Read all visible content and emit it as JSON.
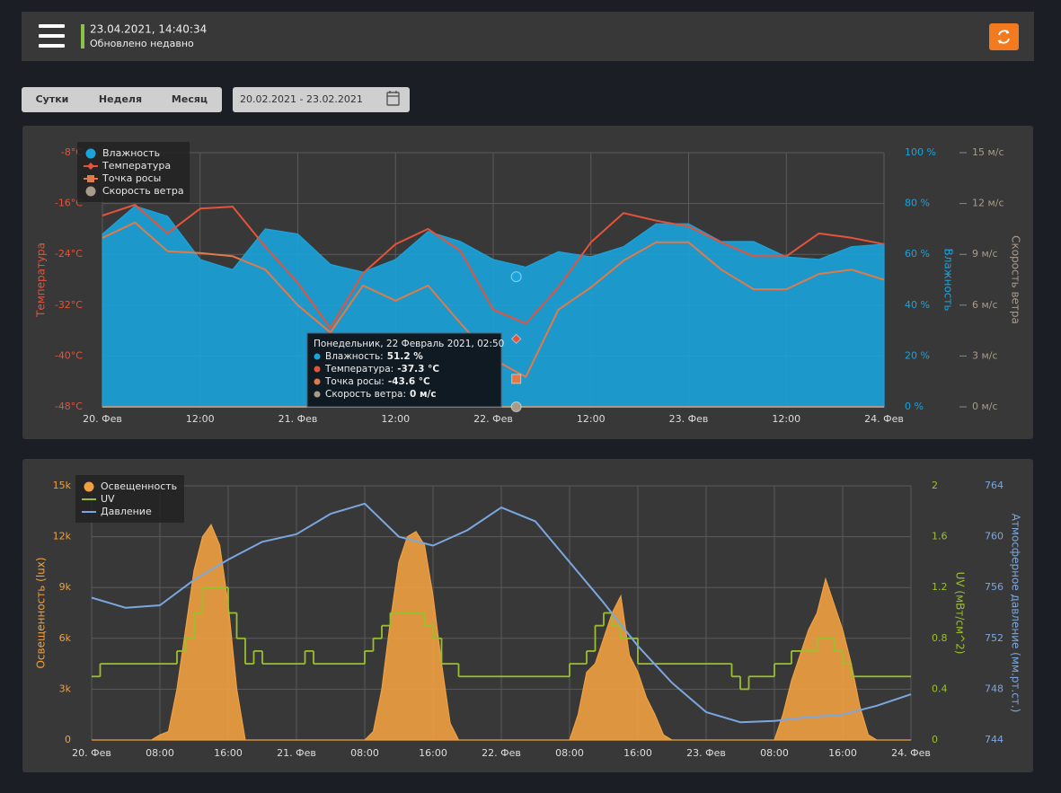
{
  "header": {
    "datetime": "23.04.2021, 14:40:34",
    "status": "Обновлено недавно"
  },
  "controls": {
    "periods": [
      "Сутки",
      "Неделя",
      "Месяц"
    ],
    "date_range": "20.02.2021 - 23.02.2021"
  },
  "chart_data": [
    {
      "type": "line",
      "grid": true,
      "legend": "top-left",
      "x": [
        0,
        4,
        8,
        12,
        16,
        20,
        24,
        28,
        32,
        36,
        40,
        44,
        48,
        52,
        56,
        60,
        64,
        68,
        72,
        76,
        80,
        84,
        88,
        92,
        96
      ],
      "xlim": [
        0,
        96
      ],
      "xticks": [
        {
          "value": 0,
          "label": "20. Фев"
        },
        {
          "value": 12,
          "label": "12:00"
        },
        {
          "value": 24,
          "label": "21. Фев"
        },
        {
          "value": 36,
          "label": "12:00"
        },
        {
          "value": 48,
          "label": "22. Фев"
        },
        {
          "value": 60,
          "label": "12:00"
        },
        {
          "value": 72,
          "label": "23. Фев"
        },
        {
          "value": 84,
          "label": "12:00"
        },
        {
          "value": 96,
          "label": "24. Фев"
        }
      ],
      "ylabel": "Температура",
      "ylim": [
        -48,
        -8
      ],
      "yticks": [
        {
          "value": -48,
          "label": "-48°C"
        },
        {
          "value": -40,
          "label": "-40°C"
        },
        {
          "value": -32,
          "label": "-32°C"
        },
        {
          "value": -24,
          "label": "-24°C"
        },
        {
          "value": -16,
          "label": "-16°C"
        },
        {
          "value": -8,
          "label": "-8°C"
        }
      ],
      "y2label": "Влажность",
      "y2lim": [
        0,
        100
      ],
      "y2ticks": [
        {
          "value": 0,
          "label": "0 %"
        },
        {
          "value": 20,
          "label": "20 %"
        },
        {
          "value": 40,
          "label": "40 %"
        },
        {
          "value": 60,
          "label": "60 %"
        },
        {
          "value": 80,
          "label": "80 %"
        },
        {
          "value": 100,
          "label": "100 %"
        }
      ],
      "y3label": "Скорость ветра",
      "y3lim": [
        0,
        15
      ],
      "y3ticks": [
        {
          "value": 0,
          "label": "0 м/с"
        },
        {
          "value": 3,
          "label": "3 м/с"
        },
        {
          "value": 6,
          "label": "6 м/с"
        },
        {
          "value": 9,
          "label": "9 м/с"
        },
        {
          "value": 12,
          "label": "12 м/с"
        },
        {
          "value": 15,
          "label": "15 м/с"
        }
      ],
      "series": [
        {
          "name": "Влажность",
          "color": "#1ba3dc",
          "axis": "y2",
          "style": "area",
          "marker": "circle",
          "values": [
            68,
            79,
            75,
            58,
            54,
            70,
            68,
            56,
            53,
            58,
            69,
            65,
            58,
            55,
            61,
            59,
            63,
            72,
            72,
            65,
            65,
            59,
            58,
            63,
            64
          ]
        },
        {
          "name": "Температура",
          "color": "#e5533a",
          "axis": "y",
          "style": "line",
          "marker": "diamond",
          "values": [
            -17.9,
            -16.2,
            -20.7,
            -16.8,
            -16.5,
            -22.8,
            -28.5,
            -35.6,
            -27,
            -22.4,
            -20,
            -23.5,
            -32.7,
            -34.9,
            -29.2,
            -22.1,
            -17.5,
            -18.7,
            -19.6,
            -22.1,
            -24.3,
            -24.3,
            -20.7,
            -21.4,
            -22.4
          ]
        },
        {
          "name": "Точка росы",
          "color": "#e07a4a",
          "axis": "y",
          "style": "line",
          "marker": "square",
          "values": [
            -21.4,
            -19,
            -23.5,
            -23.8,
            -24.3,
            -26.4,
            -32,
            -36.3,
            -28.9,
            -31.3,
            -28.9,
            -34.9,
            -40.5,
            -43.3,
            -32.7,
            -29.2,
            -25,
            -22.1,
            -22.1,
            -26.4,
            -29.5,
            -29.5,
            -27.1,
            -26.4,
            -28
          ]
        },
        {
          "name": "Скорость ветра",
          "color": "#a89b8a",
          "axis": "y3",
          "style": "line",
          "marker": "circle",
          "values": [
            0,
            0,
            0,
            0,
            0,
            0,
            0,
            0,
            0,
            0,
            0,
            0,
            0,
            0,
            0,
            0,
            0,
            0,
            0,
            0,
            0,
            0,
            0,
            0,
            0
          ]
        }
      ],
      "tooltip": {
        "title": "Понедельник, 22 Февраль 2021, 02:50",
        "x": 50.83,
        "labels": [
          "Влажность:",
          "Температура:",
          "Точка росы:",
          "Скорость ветра:"
        ],
        "values": [
          51.2,
          -37.3,
          -43.6,
          0
        ],
        "value_labels": [
          "51.2 %",
          "-37.3 °C",
          "-43.6 °C",
          "0 м/с"
        ]
      }
    },
    {
      "type": "line",
      "grid": true,
      "legend": "top-left",
      "xlim": [
        0,
        96
      ],
      "xticks": [
        {
          "value": 0,
          "label": "20. Фев"
        },
        {
          "value": 8,
          "label": "08:00"
        },
        {
          "value": 16,
          "label": "16:00"
        },
        {
          "value": 24,
          "label": "21. Фев"
        },
        {
          "value": 32,
          "label": "08:00"
        },
        {
          "value": 40,
          "label": "16:00"
        },
        {
          "value": 48,
          "label": "22. Фев"
        },
        {
          "value": 56,
          "label": "08:00"
        },
        {
          "value": 64,
          "label": "16:00"
        },
        {
          "value": 72,
          "label": "23. Фев"
        },
        {
          "value": 80,
          "label": "08:00"
        },
        {
          "value": 88,
          "label": "16:00"
        },
        {
          "value": 96,
          "label": "24. Фев"
        }
      ],
      "ylabel": "Освещенность (lux)",
      "ylim": [
        0,
        15000
      ],
      "yticks": [
        0,
        {
          "value": 3000,
          "label": "3k"
        },
        {
          "value": 6000,
          "label": "6k"
        },
        {
          "value": 9000,
          "label": "9k"
        },
        {
          "value": 12000,
          "label": "12k"
        },
        {
          "value": 15000,
          "label": "15k"
        }
      ],
      "y2label": "UV (мВт/см^2)",
      "y2lim": [
        0,
        2
      ],
      "y2ticks": [
        0,
        0.4,
        0.8,
        1.2,
        1.6,
        2
      ],
      "y3label": "Атмосферное давление (мм.рт.ст.)",
      "y3lim": [
        744,
        764
      ],
      "y3ticks": [
        744,
        748,
        752,
        756,
        760,
        764
      ],
      "series": [
        {
          "name": "Освещенность",
          "color": "#f0a040",
          "axis": "y",
          "style": "area",
          "marker": "circle",
          "x": [
            0,
            7,
            8,
            9,
            10,
            11,
            12,
            13,
            14,
            15,
            16,
            17,
            18,
            32,
            33,
            34,
            35,
            36,
            37,
            38,
            39,
            40,
            41,
            42,
            43,
            56,
            57,
            58,
            59,
            60,
            61,
            62,
            63,
            64,
            65,
            66,
            67,
            68,
            80,
            81,
            82,
            83,
            84,
            85,
            86,
            87,
            88,
            89,
            90,
            91,
            92,
            96
          ],
          "values": [
            0,
            0,
            300,
            500,
            3000,
            6500,
            10000,
            12000,
            12700,
            11500,
            8000,
            3000,
            0,
            0,
            500,
            3000,
            7000,
            10500,
            12000,
            12300,
            11500,
            8500,
            4500,
            1000,
            0,
            0,
            1500,
            4000,
            4500,
            6000,
            7500,
            8500,
            5000,
            4000,
            2500,
            1500,
            300,
            0,
            0,
            1500,
            3500,
            5000,
            6500,
            7500,
            9500,
            8000,
            6500,
            4500,
            2000,
            300,
            0,
            0
          ]
        },
        {
          "name": "UV",
          "color": "#9bbf2c",
          "axis": "y2",
          "style": "step",
          "x": [
            0,
            1,
            10,
            11,
            12,
            13,
            16,
            17,
            18,
            19,
            20,
            25,
            26,
            32,
            33,
            34,
            35,
            39,
            40,
            41,
            43,
            56,
            58,
            59,
            60,
            61,
            62,
            64,
            75,
            76,
            77,
            80,
            82,
            85,
            87,
            88,
            89,
            96
          ],
          "values": [
            0.5,
            0.6,
            0.7,
            0.8,
            1.0,
            1.2,
            1.0,
            0.8,
            0.6,
            0.7,
            0.6,
            0.7,
            0.6,
            0.7,
            0.8,
            0.9,
            1.0,
            0.9,
            0.8,
            0.6,
            0.5,
            0.6,
            0.7,
            0.9,
            1.0,
            0.9,
            0.8,
            0.6,
            0.5,
            0.4,
            0.5,
            0.6,
            0.7,
            0.8,
            0.7,
            0.6,
            0.5,
            0.5
          ]
        },
        {
          "name": "Давление",
          "color": "#7ba7e0",
          "axis": "y3",
          "style": "line",
          "x": [
            0,
            4,
            8,
            12,
            16,
            20,
            24,
            28,
            32,
            36,
            40,
            44,
            48,
            52,
            56,
            60,
            64,
            68,
            72,
            76,
            80,
            84,
            88,
            92,
            96
          ],
          "values": [
            755.2,
            754.4,
            754.6,
            756.6,
            758.2,
            759.6,
            760.2,
            761.8,
            762.6,
            760,
            759.3,
            760.5,
            762.3,
            761.2,
            758,
            754.8,
            751.4,
            748.5,
            746.2,
            745.4,
            745.5,
            745.8,
            746,
            746.7,
            747.6
          ]
        }
      ]
    }
  ]
}
